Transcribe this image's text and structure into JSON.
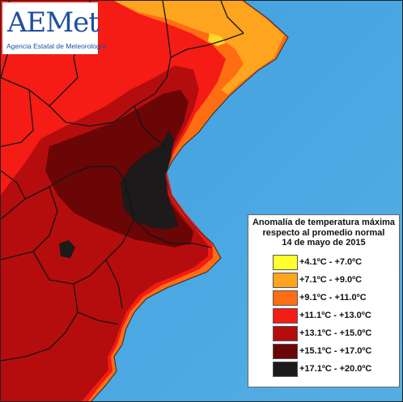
{
  "logo": {
    "name": "AEMet",
    "subtitle": "Agencia Estatal de Meteorología"
  },
  "legend": {
    "title_lines": [
      "Anomalía de temperatura máxima",
      "respecto al promedio normal",
      "14 de mayo de 2015"
    ],
    "items": [
      {
        "label": "+4.1ºC - +7.0ºC",
        "color": "#ffff2e"
      },
      {
        "label": "+7.1ºC - +9.0ºC",
        "color": "#ffa41e"
      },
      {
        "label": "+9.1ºC - +11.0ºC",
        "color": "#ff6d12"
      },
      {
        "label": "+11.1ºC - +13.0ºC",
        "color": "#f41c14"
      },
      {
        "label": "+13.1ºC - +15.0ºC",
        "color": "#b50d0d"
      },
      {
        "label": "+15.1ºC - +17.0ºC",
        "color": "#6a0606"
      },
      {
        "label": "+17.1ºC - +20.0ºC",
        "color": "#1c1a1a"
      }
    ]
  },
  "map": {
    "sea_color": "#4aa3de",
    "border_color": "#141414"
  }
}
